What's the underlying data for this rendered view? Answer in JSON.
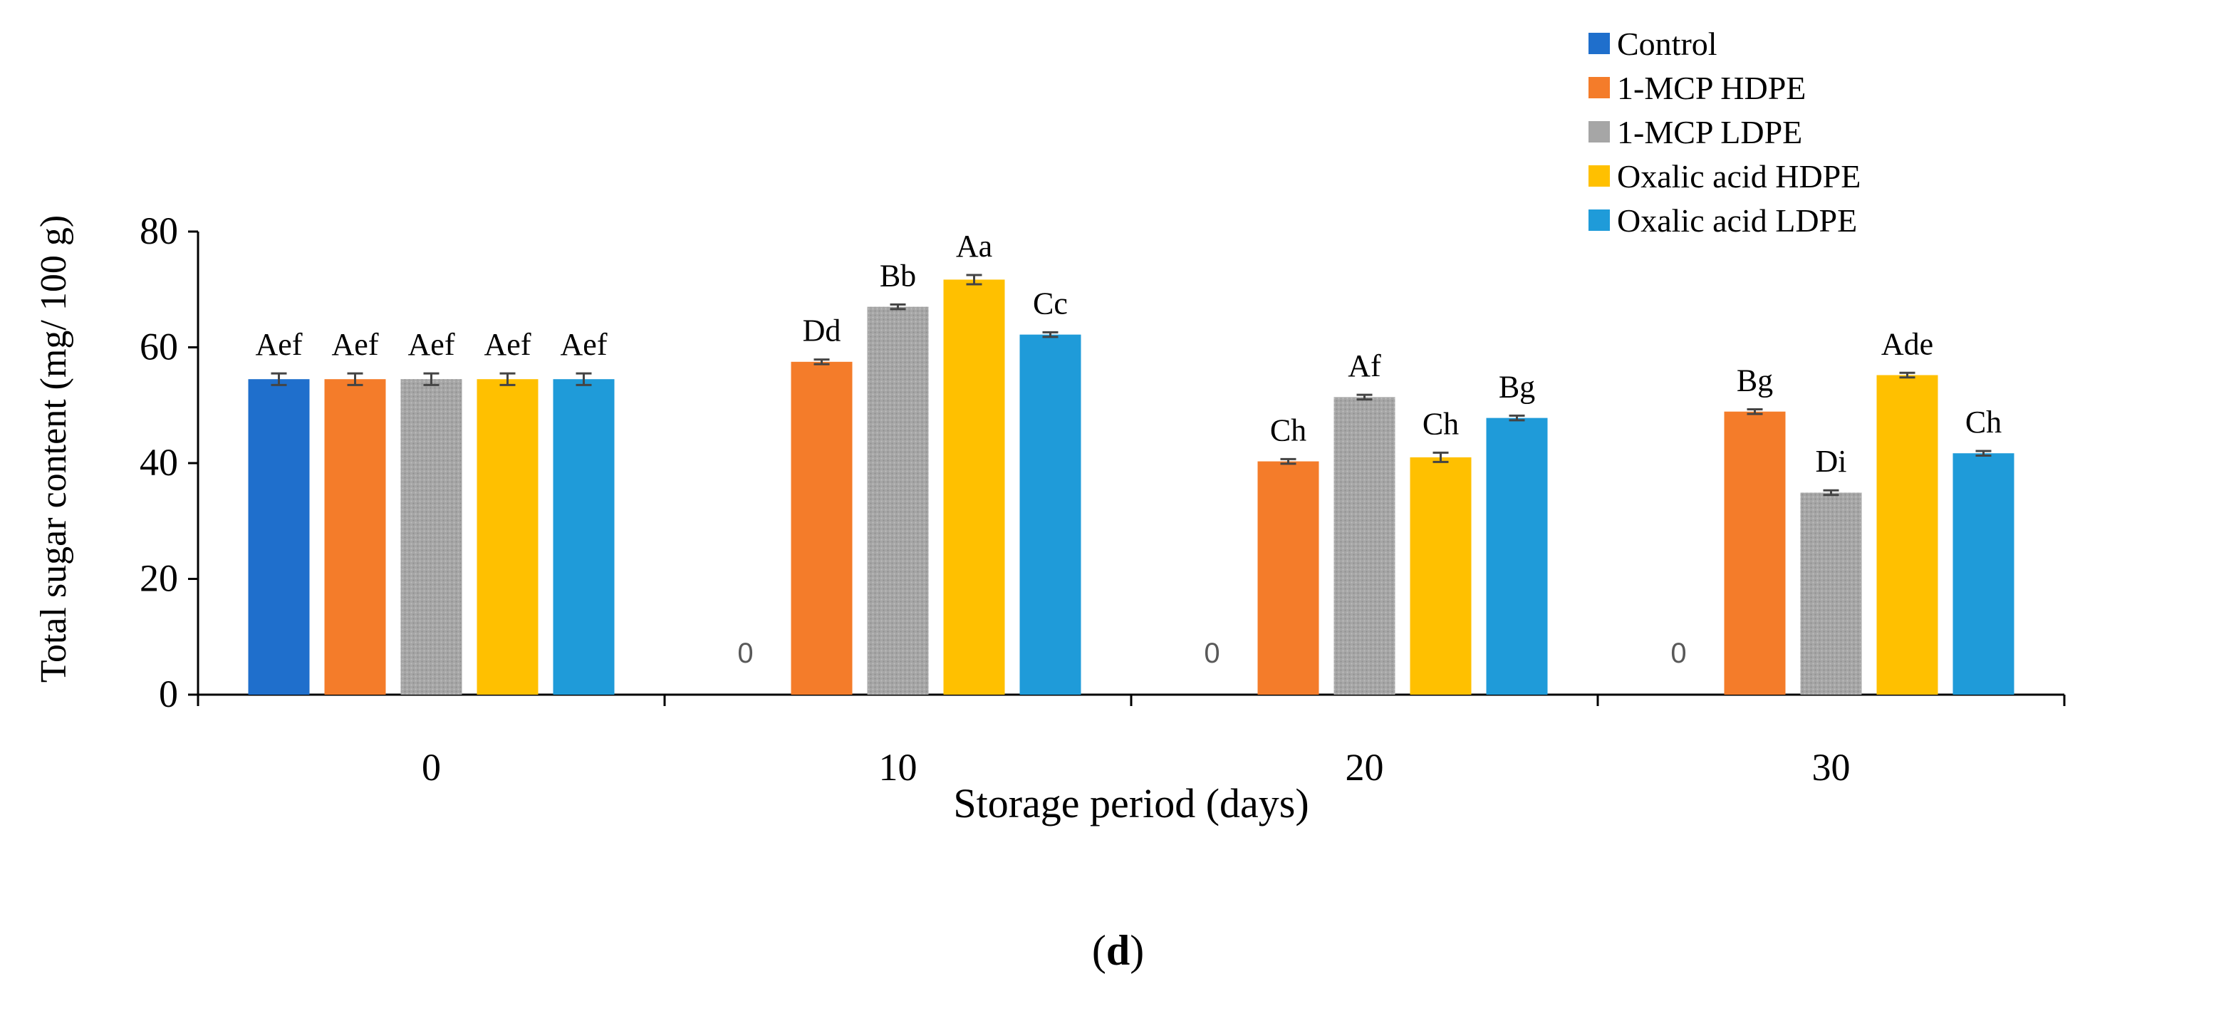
{
  "chart_data": {
    "type": "bar",
    "categories": [
      "0",
      "10",
      "20",
      "30"
    ],
    "xlabel": "Storage period (days)",
    "ylabel": "Total sugar content (mg/ 100 g)",
    "ylim": [
      0,
      80
    ],
    "yticks": [
      "0",
      "20",
      "40",
      "60",
      "80"
    ],
    "grid": false,
    "legend_position": "top-right",
    "series": [
      {
        "name": "Control",
        "color": "#1F6FCC",
        "values": [
          54.5,
          0,
          0,
          0
        ],
        "errors": [
          1.0,
          0,
          0,
          0
        ],
        "labels": [
          "Aef",
          "0",
          "0",
          "0"
        ]
      },
      {
        "name": "1-MCP HDPE",
        "color": "#F47C2A",
        "values": [
          54.5,
          57.5,
          40.3,
          48.9
        ],
        "errors": [
          1.0,
          0.4,
          0.4,
          0.4
        ],
        "labels": [
          "Aef",
          "Dd",
          "Ch",
          "Bg"
        ]
      },
      {
        "name": "1-MCP LDPE",
        "color": "#A6A6A6",
        "values": [
          54.5,
          67.0,
          51.4,
          34.9
        ],
        "errors": [
          1.0,
          0.4,
          0.4,
          0.4
        ],
        "labels": [
          "Aef",
          "Bb",
          "Af",
          "Di"
        ]
      },
      {
        "name": "Oxalic acid HDPE",
        "color": "#FFC000",
        "values": [
          54.5,
          71.7,
          41.0,
          55.2
        ],
        "errors": [
          1.0,
          0.8,
          0.8,
          0.4
        ],
        "labels": [
          "Aef",
          "Aa",
          "Ch",
          "Ade"
        ]
      },
      {
        "name": "Oxalic acid LDPE",
        "color": "#1F9BD9",
        "values": [
          54.5,
          62.2,
          47.8,
          41.7
        ],
        "errors": [
          1.0,
          0.4,
          0.4,
          0.4
        ],
        "labels": [
          "Aef",
          "Cc",
          "Bg",
          "Ch"
        ]
      }
    ]
  },
  "panel_label": {
    "open": "(",
    "letter": "d",
    "close": ")"
  }
}
